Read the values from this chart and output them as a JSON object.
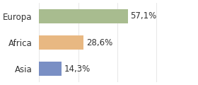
{
  "categories": [
    "Asia",
    "Africa",
    "Europa"
  ],
  "values": [
    14.3,
    28.6,
    57.1
  ],
  "labels": [
    "14,3%",
    "28,6%",
    "57,1%"
  ],
  "bar_colors": [
    "#7a8fc4",
    "#e8b882",
    "#a8bc8f"
  ],
  "background_color": "#ffffff",
  "xlim": [
    0,
    100
  ],
  "label_fontsize": 8.5,
  "tick_fontsize": 8.5
}
